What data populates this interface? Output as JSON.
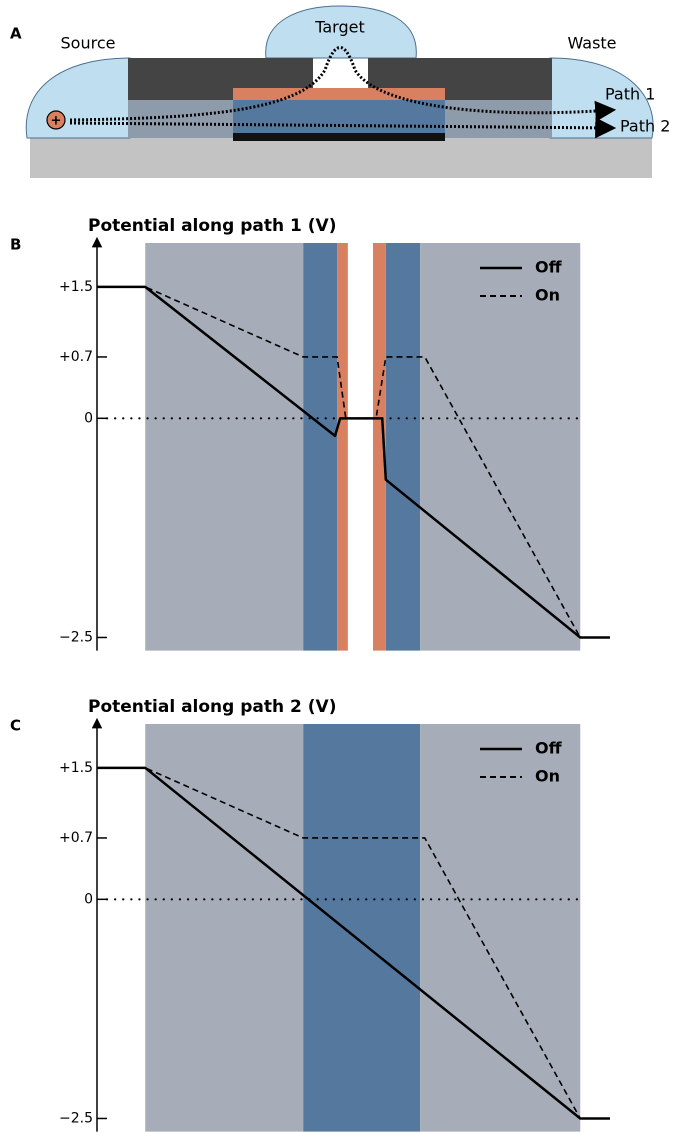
{
  "diagram": {
    "panel_label": "A",
    "source": "Source",
    "target": "Target",
    "waste": "Waste",
    "path_1": "Path 1",
    "path_2": "Path 2",
    "charge": "+"
  },
  "chart_data": [
    {
      "type": "line",
      "panel_label": "B",
      "title": "Potential along path 1 (V)",
      "xlim": [
        0,
        100
      ],
      "ylim": [
        -2.65,
        2.0
      ],
      "yticks": [
        {
          "value": 1.5,
          "label": "+1.5"
        },
        {
          "value": 0.7,
          "label": "+0.7"
        },
        0,
        {
          "value": -2.5,
          "label": "−2.5"
        }
      ],
      "zero_line": true,
      "legend": "upper right",
      "bands": [
        {
          "x": [
            9.4,
            40.2
          ],
          "color": "#a7adb8"
        },
        {
          "x": [
            40.2,
            46.8
          ],
          "color": "#55789e"
        },
        {
          "x": [
            46.8,
            48.9
          ],
          "color": "#d8805f"
        },
        {
          "x": [
            53.8,
            56.3
          ],
          "color": "#d8805f"
        },
        {
          "x": [
            56.3,
            63.0
          ],
          "color": "#55789e"
        },
        {
          "x": [
            63.0,
            94.2
          ],
          "color": "#a7adb8"
        }
      ],
      "series": [
        {
          "name": "Off",
          "color": "#000000",
          "linestyle": "solid",
          "x": [
            0,
            9.4,
            46.4,
            47.4,
            55.6,
            56.3,
            94.2,
            100
          ],
          "values": [
            1.5,
            1.5,
            -0.2,
            0,
            0,
            -0.7,
            -2.5,
            -2.5
          ]
        },
        {
          "name": "On",
          "color": "#000000",
          "linestyle": "dashed",
          "x": [
            0,
            9.4,
            40.2,
            46.8,
            48.5,
            54.4,
            56.3,
            63.9,
            94.2,
            100
          ],
          "values": [
            1.5,
            1.5,
            0.7,
            0.7,
            0,
            0,
            0.7,
            0.7,
            -2.5,
            -2.5
          ]
        }
      ]
    },
    {
      "type": "line",
      "panel_label": "C",
      "title": "Potential along path 2 (V)",
      "xlim": [
        0,
        100
      ],
      "ylim": [
        -2.65,
        2.0
      ],
      "yticks": [
        {
          "value": 1.5,
          "label": "+1.5"
        },
        {
          "value": 0.7,
          "label": "+0.7"
        },
        0,
        {
          "value": -2.5,
          "label": "−2.5"
        }
      ],
      "zero_line": true,
      "legend": "upper right",
      "bands": [
        {
          "x": [
            9.4,
            40.2
          ],
          "color": "#a7adb8"
        },
        {
          "x": [
            40.2,
            63.0
          ],
          "color": "#55789e"
        },
        {
          "x": [
            63.0,
            94.2
          ],
          "color": "#a7adb8"
        }
      ],
      "series": [
        {
          "name": "Off",
          "color": "#000000",
          "linestyle": "solid",
          "x": [
            0,
            9.4,
            94.2,
            100
          ],
          "values": [
            1.5,
            1.5,
            -2.5,
            -2.5
          ]
        },
        {
          "name": "On",
          "color": "#000000",
          "linestyle": "dashed",
          "x": [
            0,
            9.4,
            40.2,
            63.9,
            94.2,
            100
          ],
          "values": [
            1.5,
            1.5,
            0.7,
            0.7,
            -2.5,
            -2.5
          ]
        }
      ]
    }
  ]
}
